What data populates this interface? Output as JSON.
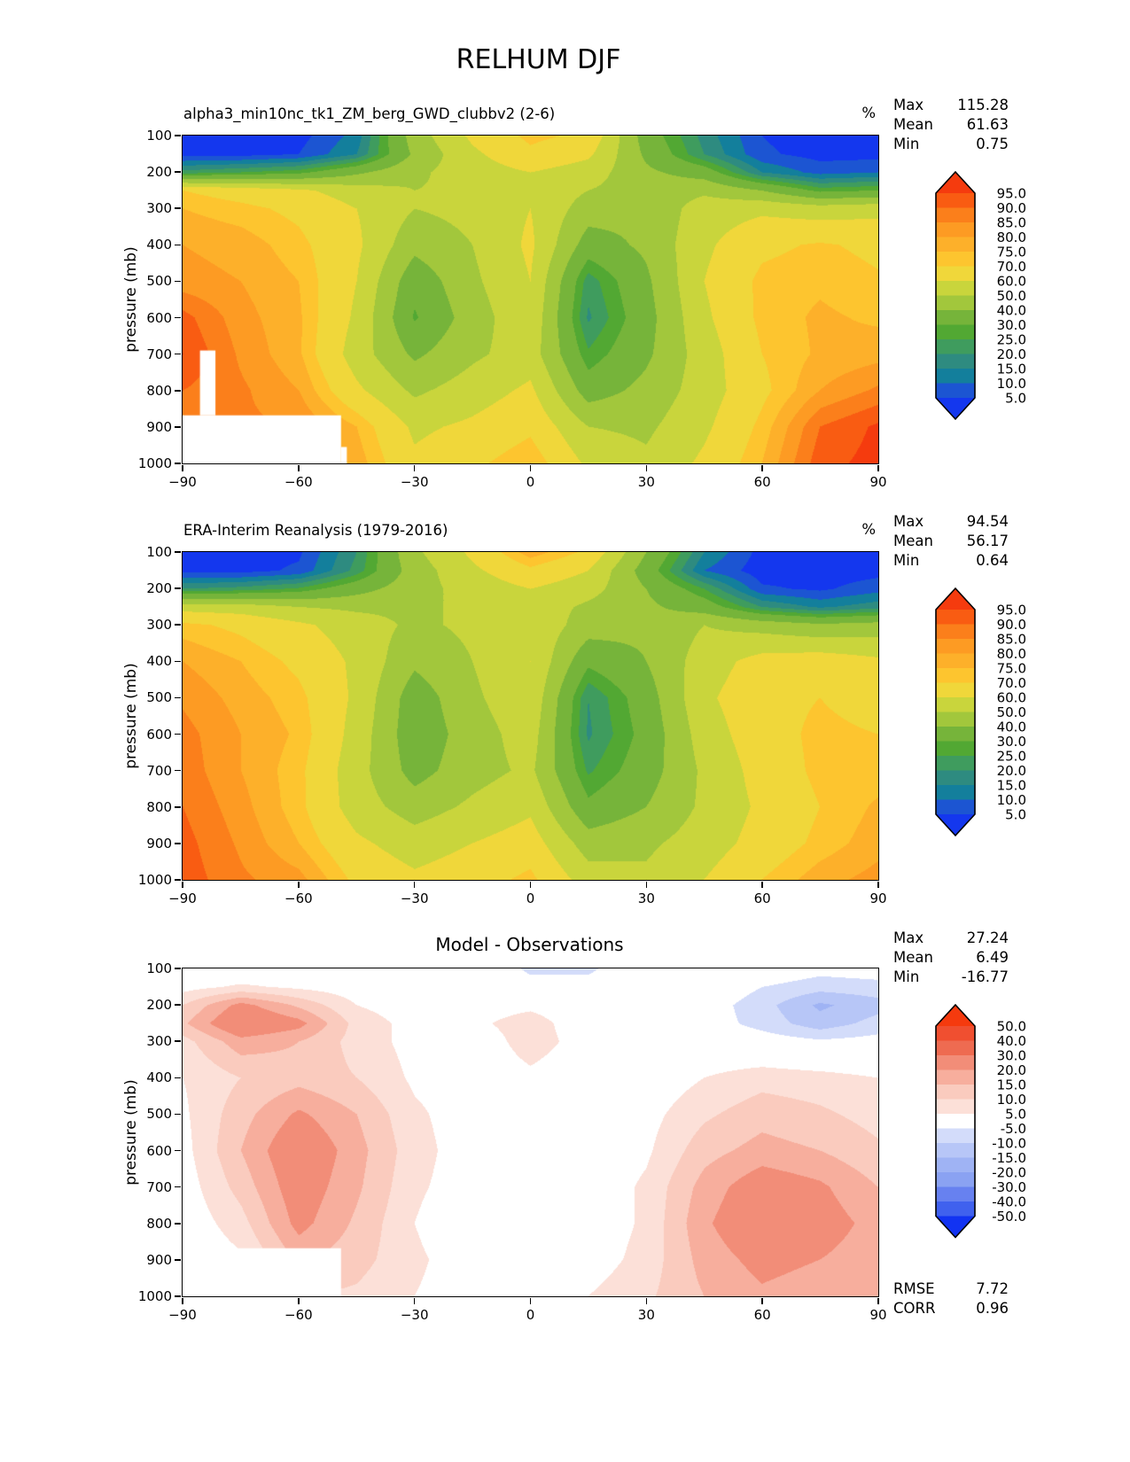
{
  "main_title": "RELHUM DJF",
  "axes": {
    "ylabel": "pressure (mb)",
    "x_ticks": [
      {
        "v": -90,
        "label": "−90"
      },
      {
        "v": -60,
        "label": "−60"
      },
      {
        "v": -30,
        "label": "−30"
      },
      {
        "v": 0,
        "label": "0"
      },
      {
        "v": 30,
        "label": "30"
      },
      {
        "v": 60,
        "label": "60"
      },
      {
        "v": 90,
        "label": "90"
      }
    ],
    "y_ticks": [
      {
        "v": 100,
        "label": "100"
      },
      {
        "v": 200,
        "label": "200"
      },
      {
        "v": 300,
        "label": "300"
      },
      {
        "v": 400,
        "label": "400"
      },
      {
        "v": 500,
        "label": "500"
      },
      {
        "v": 600,
        "label": "600"
      },
      {
        "v": 700,
        "label": "700"
      },
      {
        "v": 800,
        "label": "800"
      },
      {
        "v": 900,
        "label": "900"
      },
      {
        "v": 1000,
        "label": "1000"
      }
    ]
  },
  "chart_data": [
    {
      "type": "contour",
      "name": "model",
      "title": "alpha3_min10nc_tk1_ZM_berg_GWD_clubbv2 (2-6)",
      "title_align": "left",
      "unit": "%",
      "stats": [
        [
          "Max",
          "115.28"
        ],
        [
          "Mean",
          "61.63"
        ],
        [
          "Min",
          "0.75"
        ]
      ],
      "levels": [
        5,
        10,
        15,
        20,
        25,
        30,
        40,
        50,
        60,
        70,
        75,
        80,
        85,
        90,
        95
      ],
      "colors": [
        "#1437ee",
        "#1c55d2",
        "#137f9c",
        "#2e8b80",
        "#3f9c5e",
        "#52a833",
        "#76b43a",
        "#a2c73c",
        "#c9d53c",
        "#f0d73a",
        "#fdc52f",
        "#fdb02a",
        "#fd9b23",
        "#fb7f1b",
        "#f95c12",
        "#f53b0e"
      ],
      "colorbar_labels": [
        "95.0",
        "90.0",
        "85.0",
        "80.0",
        "75.0",
        "70.0",
        "60.0",
        "50.0",
        "40.0",
        "30.0",
        "25.0",
        "20.0",
        "15.0",
        "10.0",
        "5.0"
      ],
      "lats": [
        -90,
        -75,
        -60,
        -45,
        -30,
        -15,
        0,
        15,
        30,
        45,
        60,
        75,
        90
      ],
      "pressures": [
        100,
        150,
        200,
        250,
        300,
        400,
        500,
        600,
        700,
        800,
        900,
        1000
      ],
      "values": [
        [
          2,
          2,
          3,
          12,
          45,
          62,
          72,
          68,
          35,
          18,
          5,
          2,
          2
        ],
        [
          3,
          3,
          5,
          15,
          42,
          58,
          68,
          62,
          38,
          20,
          6,
          3,
          3
        ],
        [
          22,
          25,
          28,
          38,
          48,
          55,
          60,
          55,
          42,
          35,
          15,
          8,
          10
        ],
        [
          70,
          66,
          62,
          55,
          50,
          52,
          58,
          50,
          45,
          48,
          40,
          28,
          30
        ],
        [
          75,
          72,
          68,
          60,
          50,
          53,
          60,
          45,
          42,
          55,
          58,
          55,
          57
        ],
        [
          80,
          78,
          72,
          62,
          43,
          50,
          62,
          35,
          42,
          58,
          68,
          71,
          68
        ],
        [
          82,
          80,
          75,
          60,
          33,
          48,
          60,
          22,
          38,
          60,
          72,
          74,
          71
        ],
        [
          92,
          82,
          76,
          58,
          29,
          45,
          58,
          19,
          36,
          58,
          72,
          76,
          74
        ],
        [
          95,
          84,
          76,
          55,
          38,
          48,
          55,
          26,
          38,
          55,
          70,
          76,
          78
        ],
        [
          90,
          86,
          80,
          62,
          48,
          55,
          62,
          35,
          43,
          55,
          68,
          80,
          86
        ],
        [
          88,
          86,
          85,
          75,
          58,
          62,
          68,
          50,
          48,
          58,
          72,
          90,
          96
        ],
        [
          85,
          85,
          82,
          78,
          62,
          68,
          75,
          58,
          52,
          62,
          75,
          93,
          97
        ]
      ],
      "mask": [
        {
          "lat0": -90,
          "lat1": -49,
          "p0": 868,
          "p1": 1000
        },
        {
          "lat0": -85.5,
          "lat1": -81.5,
          "p0": 690,
          "p1": 868
        },
        {
          "lat0": -49,
          "lat1": -47.5,
          "p0": 955,
          "p1": 1000
        }
      ]
    },
    {
      "type": "contour",
      "name": "era-interim",
      "title": "ERA-Interim Reanalysis (1979-2016)",
      "title_align": "left",
      "unit": "%",
      "stats": [
        [
          "Max",
          "94.54"
        ],
        [
          "Mean",
          "56.17"
        ],
        [
          "Min",
          "0.64"
        ]
      ],
      "levels": [
        5,
        10,
        15,
        20,
        25,
        30,
        40,
        50,
        60,
        70,
        75,
        80,
        85,
        90,
        95
      ],
      "colors": [
        "#1437ee",
        "#1c55d2",
        "#137f9c",
        "#2e8b80",
        "#3f9c5e",
        "#52a833",
        "#76b43a",
        "#a2c73c",
        "#c9d53c",
        "#f0d73a",
        "#fdc52f",
        "#fdb02a",
        "#fd9b23",
        "#fb7f1b",
        "#f95c12",
        "#f53b0e"
      ],
      "colorbar_labels": [
        "95.0",
        "90.0",
        "85.0",
        "80.0",
        "75.0",
        "70.0",
        "60.0",
        "50.0",
        "40.0",
        "30.0",
        "25.0",
        "20.0",
        "15.0",
        "10.0",
        "5.0"
      ],
      "lats": [
        -90,
        -75,
        -60,
        -45,
        -30,
        -15,
        0,
        15,
        30,
        45,
        60,
        75,
        90
      ],
      "pressures": [
        100,
        150,
        200,
        250,
        300,
        400,
        500,
        600,
        700,
        800,
        900,
        1000
      ],
      "values": [
        [
          3,
          3,
          4,
          20,
          48,
          62,
          78,
          68,
          40,
          15,
          3,
          2,
          2
        ],
        [
          3,
          3,
          6,
          22,
          45,
          58,
          68,
          60,
          35,
          10,
          2,
          2,
          3
        ],
        [
          20,
          22,
          26,
          36,
          46,
          54,
          60,
          54,
          40,
          25,
          6,
          4,
          8
        ],
        [
          56,
          55,
          50,
          48,
          48,
          52,
          56,
          48,
          42,
          35,
          20,
          14,
          18
        ],
        [
          72,
          68,
          62,
          55,
          48,
          52,
          58,
          45,
          42,
          50,
          46,
          42,
          44
        ],
        [
          80,
          75,
          68,
          58,
          42,
          50,
          60,
          32,
          40,
          55,
          64,
          66,
          62
        ],
        [
          84,
          78,
          72,
          58,
          34,
          48,
          58,
          20,
          35,
          58,
          67,
          70,
          66
        ],
        [
          87,
          80,
          74,
          56,
          33,
          45,
          55,
          19,
          33,
          55,
          66,
          72,
          70
        ],
        [
          88,
          80,
          72,
          54,
          36,
          46,
          52,
          24,
          35,
          52,
          64,
          72,
          72
        ],
        [
          90,
          82,
          72,
          55,
          45,
          52,
          58,
          32,
          40,
          52,
          62,
          70,
          76
        ],
        [
          92,
          84,
          75,
          62,
          55,
          60,
          65,
          45,
          48,
          55,
          64,
          72,
          78
        ],
        [
          93,
          86,
          82,
          68,
          62,
          66,
          72,
          55,
          52,
          60,
          70,
          78,
          82
        ]
      ],
      "mask": []
    },
    {
      "type": "contour",
      "name": "difference",
      "title": "Model - Observations",
      "title_align": "center",
      "unit": "",
      "stats": [
        [
          "Max",
          "27.24"
        ],
        [
          "Mean",
          "6.49"
        ],
        [
          "Min",
          "-16.77"
        ]
      ],
      "extra_stats": [
        [
          "RMSE",
          "7.72"
        ],
        [
          "CORR",
          "0.96"
        ]
      ],
      "levels": [
        -50,
        -40,
        -30,
        -20,
        -15,
        -10,
        -5,
        5,
        10,
        15,
        20,
        30,
        40,
        50
      ],
      "colors": [
        "#1233f2",
        "#4061ee",
        "#6781f0",
        "#8aa2f2",
        "#9fb3f4",
        "#b7c6f7",
        "#d3dcfa",
        "#ffffff",
        "#fce0d8",
        "#facbbe",
        "#f7ae9d",
        "#f28d78",
        "#ee6b51",
        "#f04f30",
        "#f53a0e"
      ],
      "colorbar_labels": [
        "50.0",
        "40.0",
        "30.0",
        "20.0",
        "15.0",
        "10.0",
        "5.0",
        "-5.0",
        "-10.0",
        "-15.0",
        "-20.0",
        "-30.0",
        "-40.0",
        "-50.0"
      ],
      "lats": [
        -90,
        -75,
        -60,
        -45,
        -30,
        -15,
        0,
        15,
        30,
        45,
        60,
        75,
        90
      ],
      "pressures": [
        100,
        150,
        200,
        250,
        300,
        400,
        500,
        600,
        700,
        800,
        900,
        1000
      ],
      "values": [
        [
          0,
          0,
          0,
          0,
          0,
          0,
          -6,
          -6,
          0,
          0,
          0,
          -3,
          -2
        ],
        [
          3,
          6,
          4,
          2,
          0,
          2,
          -3,
          -3,
          0,
          0,
          -5,
          -8,
          -7
        ],
        [
          10,
          22,
          14,
          5,
          2,
          3,
          4,
          2,
          0,
          -2,
          -8,
          -16,
          -12
        ],
        [
          14,
          27,
          22,
          8,
          3,
          4,
          7,
          2,
          0,
          -2,
          -7,
          -13,
          -8
        ],
        [
          8,
          18,
          15,
          8,
          3,
          2,
          7,
          3,
          0,
          0,
          -2,
          -4,
          -3
        ],
        [
          5,
          10,
          13,
          10,
          4,
          2,
          4,
          2,
          1,
          5,
          8,
          7,
          5
        ],
        [
          4,
          13,
          21,
          15,
          6,
          2,
          1,
          1,
          3,
          9,
          13,
          11,
          8
        ],
        [
          3,
          15,
          26,
          17,
          7,
          2,
          0,
          1,
          4,
          13,
          17,
          15,
          11
        ],
        [
          2,
          12,
          24,
          16,
          6,
          2,
          0,
          1,
          6,
          17,
          24,
          21,
          15
        ],
        [
          1,
          8,
          22,
          14,
          5,
          0,
          -3,
          1,
          6,
          19,
          26,
          23,
          18
        ],
        [
          0,
          4,
          16,
          12,
          6,
          2,
          -5,
          2,
          7,
          17,
          22,
          20,
          17
        ],
        [
          0,
          2,
          10,
          9,
          5,
          2,
          0,
          5,
          9,
          15,
          19,
          17,
          15
        ]
      ],
      "mask": [
        {
          "lat0": -90,
          "lat1": -49,
          "p0": 868,
          "p1": 1000
        }
      ]
    }
  ]
}
